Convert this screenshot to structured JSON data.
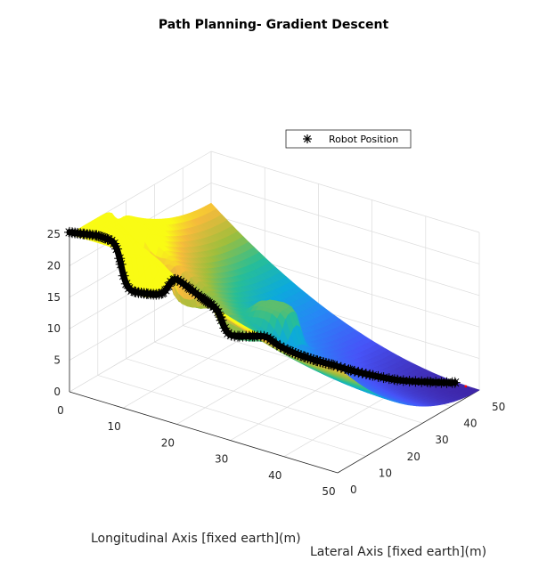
{
  "chart_data": {
    "type": "surface",
    "title": "Path Planning- Gradient Descent",
    "xlabel": "Longitudinal Axis [fixed earth](m)",
    "ylabel": "Lateral Axis [fixed earth](m)",
    "zlabel": "",
    "xlim": [
      0,
      50
    ],
    "ylim": [
      0,
      50
    ],
    "zlim": [
      0,
      25
    ],
    "x_ticks": [
      "0",
      "10",
      "20",
      "30",
      "40",
      "50"
    ],
    "y_ticks": [
      "0",
      "10",
      "20",
      "30",
      "40",
      "50"
    ],
    "z_ticks": [
      "0",
      "5",
      "10",
      "15",
      "20",
      "25"
    ],
    "grid": true,
    "colormap": "parula",
    "legend": {
      "placement": "inside-top",
      "entries": [
        {
          "marker": "asterisk",
          "color": "#000000",
          "label": "Robot Position"
        }
      ]
    },
    "obstacles": [
      {
        "x": 11,
        "y": 6,
        "top_z": 17
      },
      {
        "x": 5,
        "y": 17,
        "top_z": 16
      },
      {
        "x": 14,
        "y": 18,
        "top_z": 13
      },
      {
        "x": 24,
        "y": 16,
        "top_z": 11
      },
      {
        "x": 23,
        "y": 29,
        "top_z": 12
      }
    ],
    "robot_path": [
      [
        0,
        0
      ],
      [
        2,
        1
      ],
      [
        4,
        2
      ],
      [
        6,
        2
      ],
      [
        8,
        3
      ],
      [
        10,
        4
      ],
      [
        12,
        5
      ],
      [
        14,
        6
      ],
      [
        16,
        7
      ],
      [
        18,
        8
      ],
      [
        20,
        9
      ],
      [
        21,
        10
      ],
      [
        22,
        12
      ],
      [
        24,
        14
      ],
      [
        26,
        16
      ],
      [
        28,
        18
      ],
      [
        30,
        21
      ],
      [
        31,
        24
      ],
      [
        32,
        27
      ],
      [
        33,
        30
      ],
      [
        35,
        33
      ],
      [
        37,
        36
      ],
      [
        40,
        40
      ],
      [
        43,
        45
      ],
      [
        46,
        49
      ]
    ],
    "goal": {
      "x": 48,
      "y": 49,
      "color": "#ff0000"
    }
  }
}
